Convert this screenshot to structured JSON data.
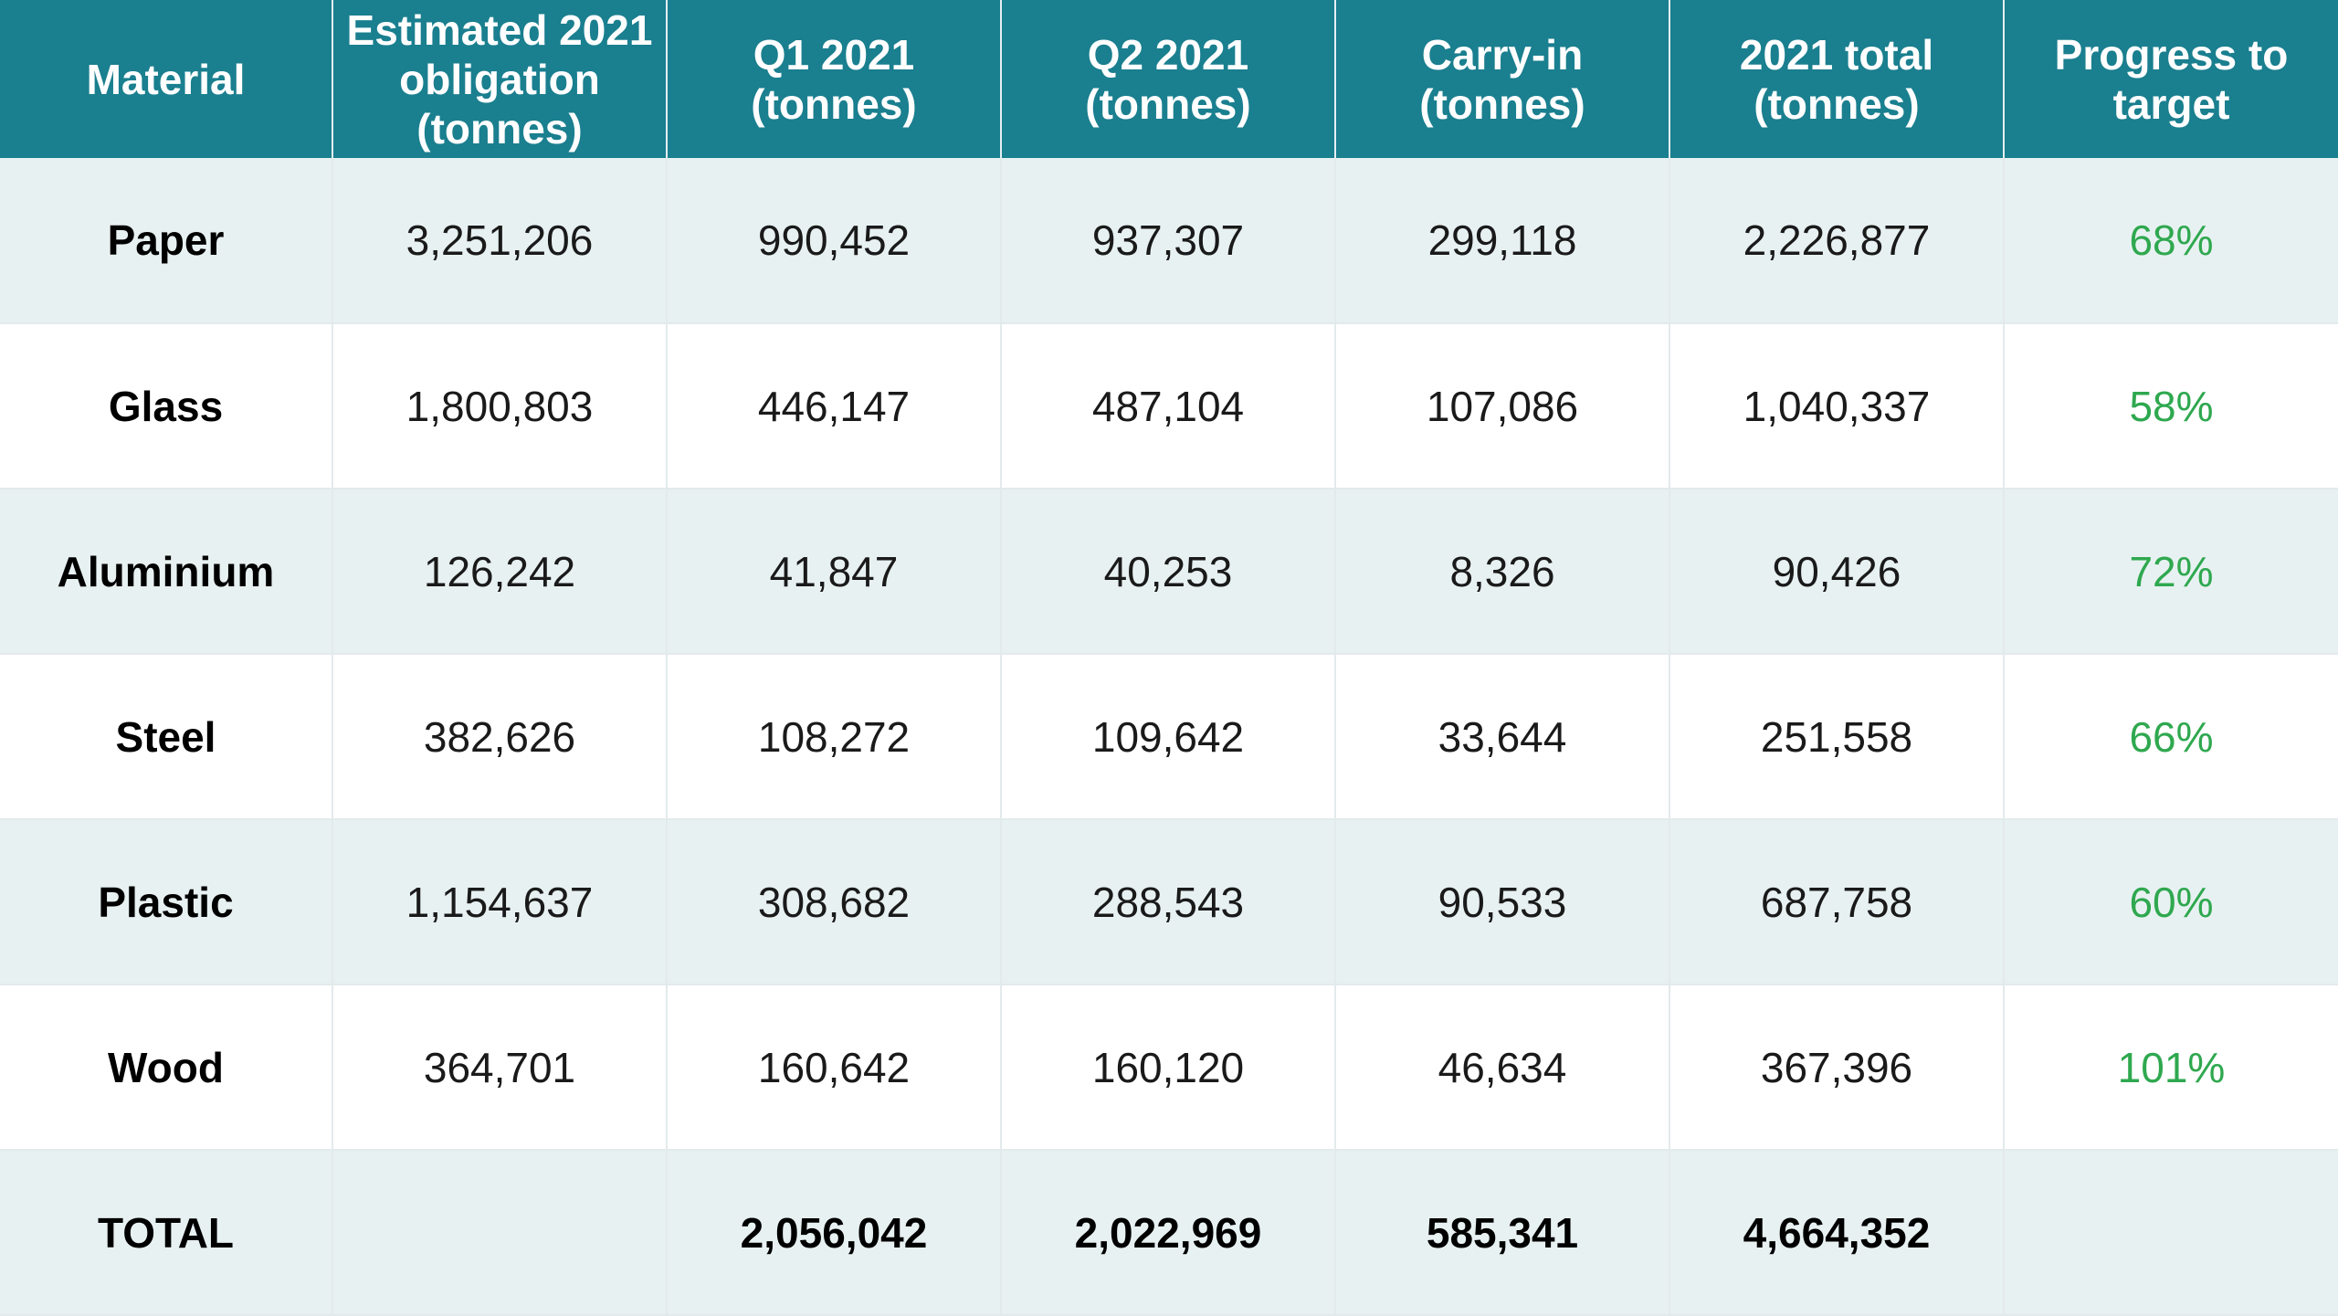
{
  "table": {
    "headers": [
      "Material",
      "Estimated 2021 obligation (tonnes)",
      "Q1 2021 (tonnes)",
      "Q2 2021 (tonnes)",
      "Carry-in (tonnes)",
      "2021 total (tonnes)",
      "Progress to target"
    ],
    "rows": [
      {
        "material": "Paper",
        "obligation": "3,251,206",
        "q1": "990,452",
        "q2": "937,307",
        "carry_in": "299,118",
        "total": "2,226,877",
        "progress": "68%"
      },
      {
        "material": "Glass",
        "obligation": "1,800,803",
        "q1": "446,147",
        "q2": "487,104",
        "carry_in": "107,086",
        "total": "1,040,337",
        "progress": "58%"
      },
      {
        "material": "Aluminium",
        "obligation": "126,242",
        "q1": "41,847",
        "q2": "40,253",
        "carry_in": "8,326",
        "total": "90,426",
        "progress": "72%"
      },
      {
        "material": "Steel",
        "obligation": "382,626",
        "q1": "108,272",
        "q2": "109,642",
        "carry_in": "33,644",
        "total": "251,558",
        "progress": "66%"
      },
      {
        "material": "Plastic",
        "obligation": "1,154,637",
        "q1": "308,682",
        "q2": "288,543",
        "carry_in": "90,533",
        "total": "687,758",
        "progress": "60%"
      },
      {
        "material": "Wood",
        "obligation": "364,701",
        "q1": "160,642",
        "q2": "160,120",
        "carry_in": "46,634",
        "total": "367,396",
        "progress": "101%"
      }
    ],
    "total_row": {
      "label": "TOTAL",
      "obligation": "",
      "q1": "2,056,042",
      "q2": "2,022,969",
      "carry_in": "585,341",
      "total": "4,664,352",
      "progress": ""
    }
  },
  "colors": {
    "header_bg": "#1a7f8f",
    "header_text": "#ffffff",
    "stripe_bg": "#e8f1f2",
    "progress_text": "#2fa84f"
  }
}
